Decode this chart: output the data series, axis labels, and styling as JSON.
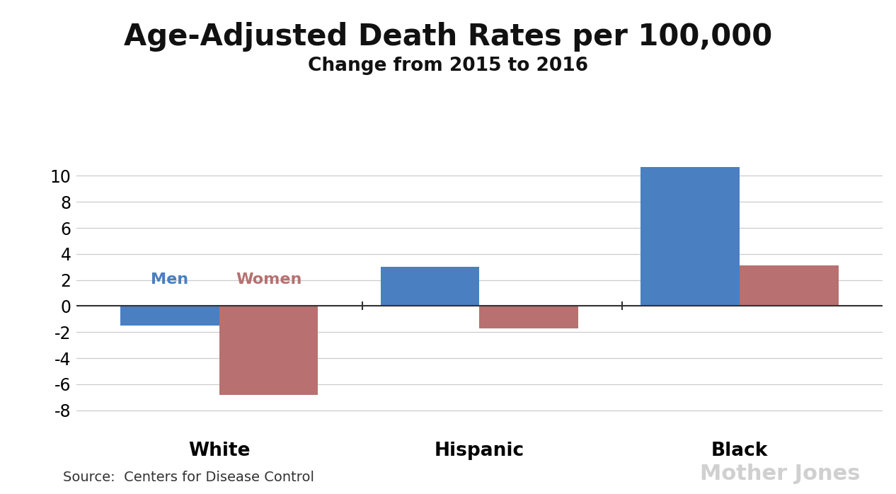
{
  "title": "Age-Adjusted Death Rates per 100,000",
  "subtitle": "Change from 2015 to 2016",
  "categories": [
    "White",
    "Hispanic",
    "Black"
  ],
  "men_values": [
    -1.5,
    3.0,
    10.7
  ],
  "women_values": [
    -6.8,
    -1.7,
    3.1
  ],
  "men_color": "#4a7fc1",
  "women_color": "#b87070",
  "background_color": "#ffffff",
  "ylim": [
    -9.5,
    12.5
  ],
  "yticks": [
    -8,
    -6,
    -4,
    -2,
    0,
    2,
    4,
    6,
    8,
    10
  ],
  "source_text": "Source:  Centers for Disease Control",
  "watermark": "Mother Jones",
  "bar_width": 0.38,
  "title_fontsize": 30,
  "subtitle_fontsize": 19,
  "tick_fontsize": 17,
  "category_fontsize": 19,
  "legend_fontsize": 16,
  "source_fontsize": 14,
  "watermark_fontsize": 22
}
